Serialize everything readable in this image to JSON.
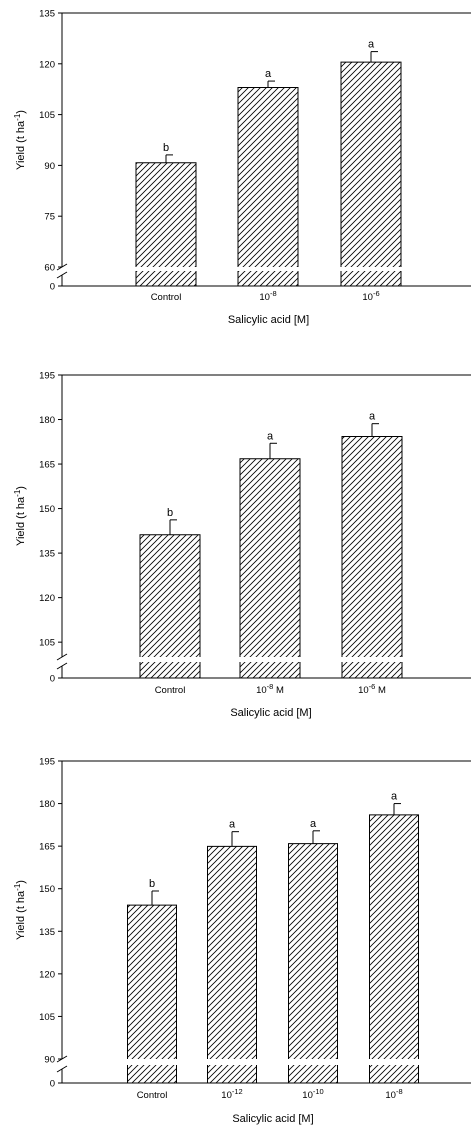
{
  "chart_data": [
    {
      "type": "bar",
      "ylabel": "Yield (t ha-1)",
      "ylabel_main": "Yield (t ha",
      "ylabel_sup": "-1",
      "ylabel_end": ")",
      "xlabel": "Salicylic acid [M]",
      "categories": [
        {
          "base": "Control",
          "sup": ""
        },
        {
          "base": "10",
          "sup": "-8"
        },
        {
          "base": "10",
          "sup": "-6"
        }
      ],
      "values": [
        90.8,
        113.0,
        120.5
      ],
      "errors": [
        2.3,
        1.9,
        3.1
      ],
      "significance": [
        "b",
        "a",
        "a"
      ],
      "y_break": [
        0,
        60
      ],
      "ylim": [
        60,
        135
      ],
      "yticks": [
        60,
        75,
        90,
        105,
        120,
        135
      ],
      "ytick_below_break": 0
    },
    {
      "type": "bar",
      "ylabel": "Yield (t ha-1)",
      "ylabel_main": "Yield (t ha",
      "ylabel_sup": "-1",
      "ylabel_end": ")",
      "xlabel": "Salicylic acid [M]",
      "categories": [
        {
          "base": "Control",
          "sup": ""
        },
        {
          "base": "10",
          "sup": "-8",
          "suffix": " M"
        },
        {
          "base": "10",
          "sup": "-6",
          "suffix": " M"
        }
      ],
      "values": [
        141.2,
        166.8,
        174.3
      ],
      "errors": [
        5.0,
        5.2,
        4.3
      ],
      "significance": [
        "b",
        "a",
        "a"
      ],
      "y_break": [
        0,
        100
      ],
      "ylim": [
        100,
        195
      ],
      "yticks": [
        105,
        120,
        135,
        150,
        165,
        180,
        195
      ],
      "ytick_below_break": 0
    },
    {
      "type": "bar",
      "ylabel": "Yield (t ha-1)",
      "ylabel_main": "Yield (t ha",
      "ylabel_sup": "-1",
      "ylabel_end": ")",
      "xlabel": "Salicylic acid [M]",
      "categories": [
        {
          "base": "Control",
          "sup": ""
        },
        {
          "base": "10",
          "sup": "-12"
        },
        {
          "base": "10",
          "sup": "-10"
        },
        {
          "base": "10",
          "sup": "-8"
        }
      ],
      "values": [
        144.2,
        164.9,
        165.9,
        176.0
      ],
      "errors": [
        5.0,
        5.2,
        4.5,
        4.0
      ],
      "significance": [
        "b",
        "a",
        "a",
        "a"
      ],
      "y_break": [
        0,
        90
      ],
      "ylim": [
        90,
        195
      ],
      "yticks": [
        90,
        105,
        120,
        135,
        150,
        165,
        180,
        195
      ],
      "ytick_below_break": 0
    }
  ]
}
